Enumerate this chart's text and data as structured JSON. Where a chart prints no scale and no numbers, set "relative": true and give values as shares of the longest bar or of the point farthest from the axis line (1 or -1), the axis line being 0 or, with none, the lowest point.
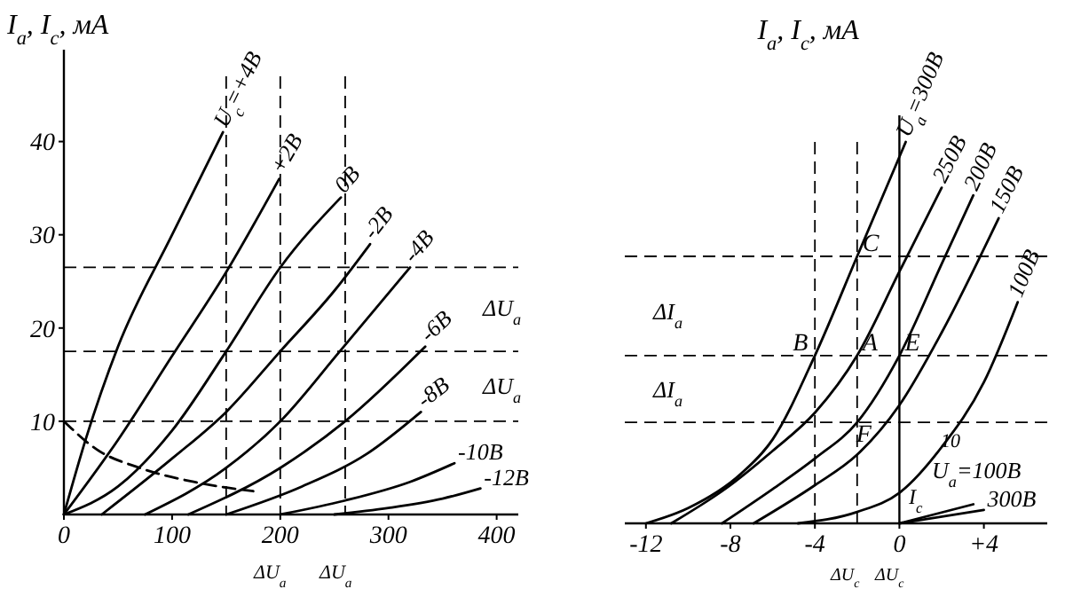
{
  "chart_data": [
    {
      "type": "line",
      "ylabel": "I$_{а}$, I$_{с}$, мА",
      "xlim": [
        0,
        420
      ],
      "ylim": [
        0,
        47
      ],
      "xticks": [
        0,
        100,
        200,
        300,
        400
      ],
      "yticks": [
        10,
        20,
        30,
        40
      ],
      "legend": false,
      "line_style": "solid",
      "series": [
        {
          "name": "U$_{с}$=+4В",
          "color": "#000000",
          "x": [
            0,
            20,
            50,
            100,
            147
          ],
          "values": [
            0,
            8,
            18,
            30,
            41
          ]
        },
        {
          "name": "+2В",
          "color": "#000000",
          "x": [
            0,
            50,
            100,
            150,
            199
          ],
          "values": [
            0,
            8,
            17,
            26,
            36
          ]
        },
        {
          "name": "0В",
          "color": "#000000",
          "x": [
            0,
            50,
            100,
            150,
            200,
            256
          ],
          "values": [
            0,
            3,
            9,
            17.5,
            26.5,
            34
          ]
        },
        {
          "name": "-2В",
          "color": "#000000",
          "x": [
            35,
            100,
            150,
            200,
            250,
            283
          ],
          "values": [
            0,
            6,
            11,
            17.5,
            24,
            29
          ]
        },
        {
          "name": "-4В",
          "color": "#000000",
          "x": [
            75,
            150,
            200,
            255,
            320
          ],
          "values": [
            0,
            5,
            10,
            17.5,
            26.5
          ]
        },
        {
          "name": "-6В",
          "color": "#000000",
          "x": [
            115,
            200,
            260,
            334
          ],
          "values": [
            0,
            5,
            10,
            18
          ]
        },
        {
          "name": "-8В",
          "color": "#000000",
          "x": [
            150,
            220,
            280,
            330
          ],
          "values": [
            0,
            3,
            6.5,
            11
          ]
        },
        {
          "name": "-10В",
          "color": "#000000",
          "x": [
            200,
            260,
            320,
            361
          ],
          "values": [
            0,
            1.5,
            3.5,
            5.5
          ]
        },
        {
          "name": "-12В",
          "color": "#000000",
          "x": [
            250,
            300,
            350,
            385
          ],
          "values": [
            0,
            0.7,
            1.7,
            2.8
          ]
        },
        {
          "color": "#000000",
          "line_style": "dashed",
          "x": [
            0,
            30,
            70,
            120,
            175
          ],
          "values": [
            10,
            7,
            5,
            3.5,
            2.5
          ]
        }
      ],
      "ref_lines": [
        {
          "axis": "x",
          "value": 150,
          "line_style": "dashed"
        },
        {
          "axis": "x",
          "value": 200,
          "line_style": "dashed"
        },
        {
          "axis": "x",
          "value": 260,
          "line_style": "dashed"
        },
        {
          "axis": "y",
          "value": 26.5,
          "line_style": "dashed"
        },
        {
          "axis": "y",
          "value": 17.5,
          "line_style": "dashed"
        },
        {
          "axis": "y",
          "value": 10,
          "line_style": "dashed"
        }
      ],
      "annotations": [
        "ΔU$_{а}$",
        "ΔU$_{а}$",
        "ΔU$_{а}$",
        "ΔU$_{а}$"
      ]
    },
    {
      "type": "line",
      "relative": true,
      "ylabel": "I$_{а}$, I$_{с}$, мА",
      "xlim": [
        -13,
        7
      ],
      "xticks": [
        -12,
        -8,
        -4,
        0,
        {
          "value": 4,
          "label": "+4"
        }
      ],
      "legend": false,
      "line_style": "solid",
      "series": [
        {
          "name": "U$_{а}$=300В",
          "color": "#000000",
          "x": [
            -12,
            -10,
            -7.5,
            -6,
            -4,
            -2,
            0.3
          ],
          "values": [
            0,
            0.04,
            0.13,
            0.22,
            0.44,
            0.7,
            1
          ]
        },
        {
          "name": "250В",
          "color": "#000000",
          "x": [
            -10.8,
            -8,
            -6,
            -4,
            -2,
            0,
            2
          ],
          "values": [
            0,
            0.1,
            0.19,
            0.29,
            0.44,
            0.66,
            0.88
          ]
        },
        {
          "name": "200В",
          "color": "#000000",
          "x": [
            -8.4,
            -6,
            -4,
            -2,
            0,
            2,
            3.5
          ],
          "values": [
            0,
            0.09,
            0.17,
            0.265,
            0.44,
            0.68,
            0.86
          ]
        },
        {
          "name": "150В",
          "color": "#000000",
          "x": [
            -6.9,
            -4,
            -2,
            0,
            2,
            4.7
          ],
          "values": [
            0,
            0.1,
            0.18,
            0.31,
            0.5,
            0.8
          ]
        },
        {
          "name": "100В",
          "color": "#000000",
          "x": [
            -4.8,
            -2,
            0,
            2,
            4,
            5.6
          ],
          "values": [
            0,
            0.03,
            0.08,
            0.2,
            0.37,
            0.58
          ]
        },
        {
          "name": "U$_{а}$=100В",
          "color": "#000000",
          "x": [
            0,
            3.5
          ],
          "values": [
            0,
            0.05
          ]
        },
        {
          "name": "300В",
          "color": "#000000",
          "x": [
            0,
            4
          ],
          "values": [
            0,
            0.035
          ]
        }
      ],
      "ref_lines": [
        {
          "axis": "x",
          "value": -4,
          "line_style": "dashed"
        },
        {
          "axis": "x",
          "value": -2,
          "line_style": "dashed"
        },
        {
          "axis": "y",
          "value": 0.7,
          "line_style": "dashed"
        },
        {
          "axis": "y",
          "value": 0.44,
          "line_style": "dashed"
        },
        {
          "axis": "y",
          "value": 0.265,
          "line_style": "dashed"
        }
      ],
      "annotations": [
        {
          "text": "C",
          "x": -2,
          "y": 0.7
        },
        {
          "text": "B",
          "x": -5.3,
          "y": 0.44
        },
        {
          "text": "A",
          "x": -2,
          "y": 0.44
        },
        {
          "text": "E",
          "x": 0,
          "y": 0.44
        },
        {
          "text": "F",
          "x": -2.3,
          "y": 0.2
        },
        "ΔI$_{а}$",
        "ΔI$_{а}$",
        "10",
        "I$_{с}$",
        "ΔU$_{с}$",
        "ΔU$_{с}$"
      ]
    }
  ]
}
